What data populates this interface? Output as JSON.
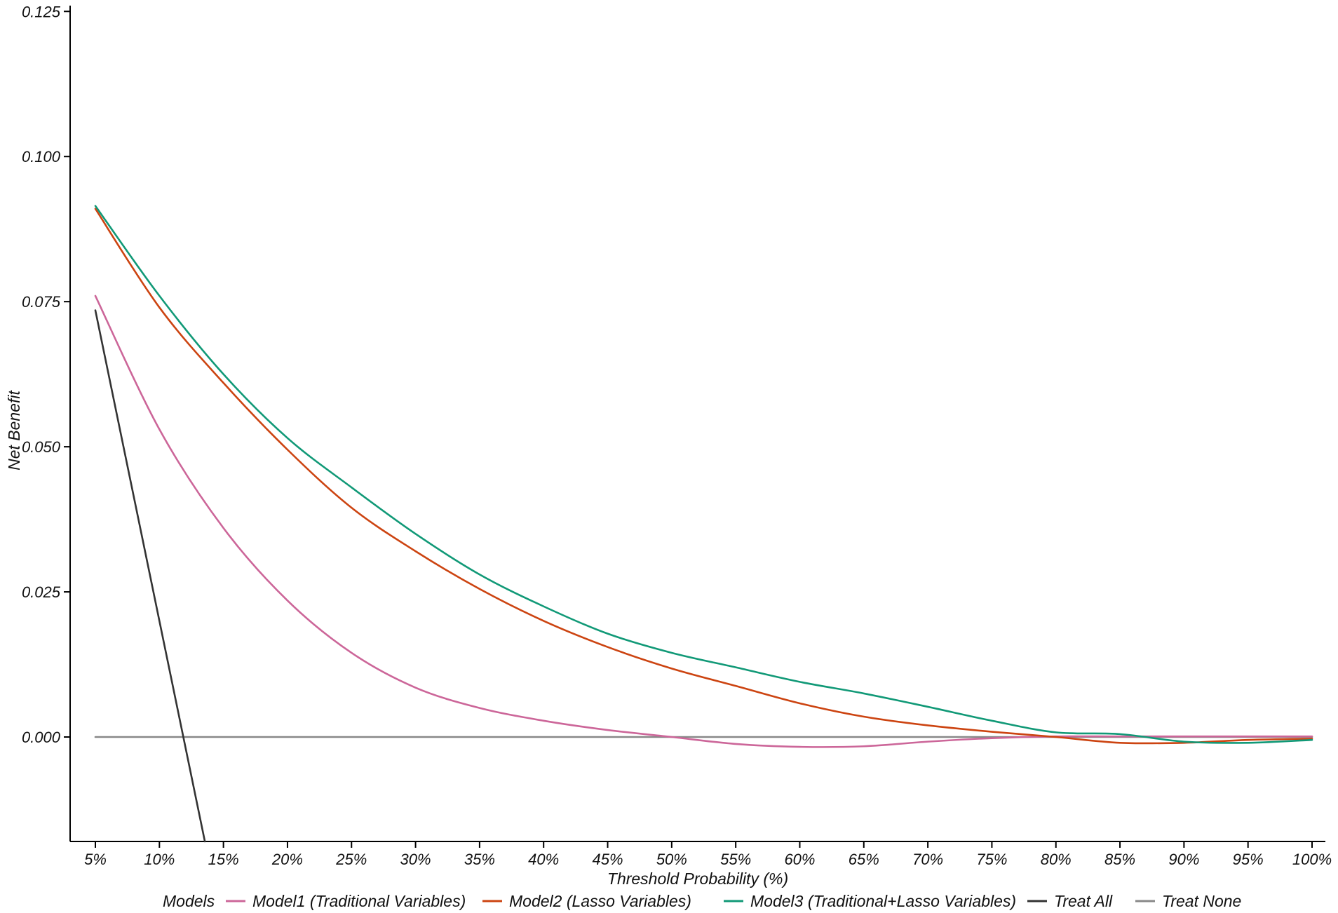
{
  "chart_data": {
    "type": "line",
    "title": "",
    "xlabel": "Threshold Probability (%)",
    "ylabel": "Net Benefit",
    "xlim": [
      0.05,
      1.0
    ],
    "ylim": [
      -0.018,
      0.126
    ],
    "x_ticks": [
      0.05,
      0.1,
      0.15,
      0.2,
      0.25,
      0.3,
      0.35,
      0.4,
      0.45,
      0.5,
      0.55,
      0.6,
      0.65,
      0.7,
      0.75,
      0.8,
      0.85,
      0.9,
      0.95,
      1.0
    ],
    "x_tick_labels": [
      "5%",
      "10%",
      "15%",
      "20%",
      "25%",
      "30%",
      "35%",
      "40%",
      "45%",
      "50%",
      "55%",
      "60%",
      "65%",
      "70%",
      "75%",
      "80%",
      "85%",
      "90%",
      "95%",
      "100%"
    ],
    "y_ticks": [
      0.0,
      0.025,
      0.05,
      0.075,
      0.1,
      0.125
    ],
    "y_tick_labels": [
      "0.000",
      "0.025",
      "0.050",
      "0.075",
      "0.100",
      "0.125"
    ],
    "grid": false,
    "legend": {
      "position": "bottom",
      "title": "Models"
    },
    "x": [
      0.05,
      0.1,
      0.15,
      0.2,
      0.25,
      0.3,
      0.35,
      0.4,
      0.45,
      0.5,
      0.55,
      0.6,
      0.65,
      0.7,
      0.75,
      0.8,
      0.85,
      0.9,
      0.95,
      1.0
    ],
    "series": [
      {
        "name": "Model1 (Traditional Variables)",
        "color": "#CC6699",
        "values": [
          0.076,
          0.053,
          0.036,
          0.0235,
          0.0145,
          0.0085,
          0.005,
          0.0028,
          0.0012,
          0.0,
          -0.0012,
          -0.0017,
          -0.0016,
          -0.0008,
          -0.0002,
          0.0001,
          0.0001,
          0.0001,
          0.0001,
          0.0001
        ]
      },
      {
        "name": "Model2 (Lasso Variables)",
        "color": "#CC4411",
        "values": [
          0.091,
          0.074,
          0.061,
          0.0495,
          0.0395,
          0.032,
          0.0255,
          0.02,
          0.0155,
          0.0118,
          0.0088,
          0.0058,
          0.0035,
          0.002,
          0.0009,
          0.0,
          -0.001,
          -0.001,
          -0.0005,
          -0.0003
        ]
      },
      {
        "name": "Model3 (Traditional+Lasso Variables)",
        "color": "#119977",
        "values": [
          0.0915,
          0.076,
          0.0625,
          0.0515,
          0.043,
          0.035,
          0.028,
          0.0225,
          0.0178,
          0.0145,
          0.012,
          0.0095,
          0.0075,
          0.0052,
          0.0028,
          0.0008,
          0.0005,
          -0.0008,
          -0.001,
          -0.0005
        ]
      },
      {
        "name": "Treat All",
        "color": "#333333",
        "x": [
          0.05,
          0.1355
        ],
        "values": [
          0.0735,
          -0.018
        ]
      },
      {
        "name": "Treat None",
        "color": "#888888",
        "x": [
          0.05,
          1.0
        ],
        "values": [
          0.0,
          0.0
        ]
      }
    ]
  }
}
